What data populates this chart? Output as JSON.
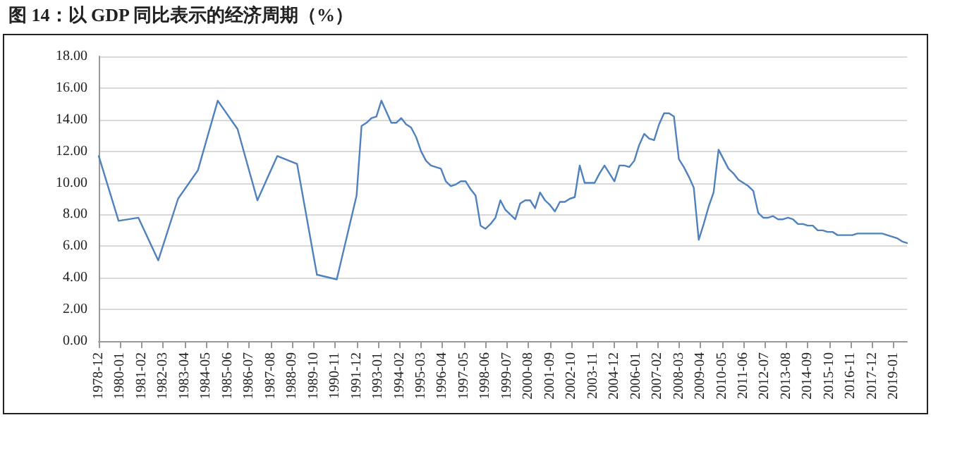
{
  "chart_data": {
    "type": "line",
    "title": "图 14：以 GDP 同比表示的经济周期（%）",
    "x": [
      "1978-12",
      "1979-12",
      "1980-12",
      "1981-12",
      "1982-12",
      "1983-12",
      "1984-12",
      "1985-12",
      "1986-12",
      "1987-12",
      "1988-12",
      "1989-12",
      "1990-12",
      "1991-12",
      "1992-03",
      "1992-06",
      "1992-09",
      "1992-12",
      "1993-03",
      "1993-06",
      "1993-09",
      "1993-12",
      "1994-03",
      "1994-06",
      "1994-09",
      "1994-12",
      "1995-03",
      "1995-06",
      "1995-09",
      "1995-12",
      "1996-03",
      "1996-06",
      "1996-09",
      "1996-12",
      "1997-03",
      "1997-06",
      "1997-09",
      "1997-12",
      "1998-03",
      "1998-06",
      "1998-09",
      "1998-12",
      "1999-03",
      "1999-06",
      "1999-09",
      "1999-12",
      "2000-03",
      "2000-06",
      "2000-09",
      "2000-12",
      "2001-03",
      "2001-06",
      "2001-09",
      "2001-12",
      "2002-03",
      "2002-06",
      "2002-09",
      "2002-12",
      "2003-03",
      "2003-06",
      "2003-09",
      "2003-12",
      "2004-03",
      "2004-06",
      "2004-09",
      "2004-12",
      "2005-03",
      "2005-06",
      "2005-09",
      "2005-12",
      "2006-03",
      "2006-06",
      "2006-09",
      "2006-12",
      "2007-03",
      "2007-06",
      "2007-09",
      "2007-12",
      "2008-03",
      "2008-06",
      "2008-09",
      "2008-12",
      "2009-03",
      "2009-06",
      "2009-09",
      "2009-12",
      "2010-03",
      "2010-06",
      "2010-09",
      "2010-12",
      "2011-03",
      "2011-06",
      "2011-09",
      "2011-12",
      "2012-03",
      "2012-06",
      "2012-09",
      "2012-12",
      "2013-03",
      "2013-06",
      "2013-09",
      "2013-12",
      "2014-03",
      "2014-06",
      "2014-09",
      "2014-12",
      "2015-03",
      "2015-06",
      "2015-09",
      "2015-12",
      "2016-03",
      "2016-06",
      "2016-09",
      "2016-12",
      "2017-03",
      "2017-06",
      "2017-09",
      "2017-12",
      "2018-03",
      "2018-06",
      "2018-09",
      "2018-12",
      "2019-03",
      "2019-06",
      "2019-09"
    ],
    "series": [
      {
        "color": "#4f81bd",
        "values": [
          11.7,
          7.6,
          7.8,
          5.1,
          9.0,
          10.8,
          15.2,
          13.4,
          8.9,
          11.7,
          11.2,
          4.2,
          3.9,
          9.2,
          13.6,
          13.8,
          14.1,
          14.2,
          15.2,
          14.5,
          13.8,
          13.8,
          14.1,
          13.7,
          13.5,
          12.9,
          12.0,
          11.4,
          11.1,
          11.0,
          10.9,
          10.1,
          9.8,
          9.9,
          10.1,
          10.1,
          9.6,
          9.2,
          7.3,
          7.1,
          7.4,
          7.8,
          8.9,
          8.3,
          8.0,
          7.7,
          8.7,
          8.9,
          8.9,
          8.4,
          9.4,
          8.9,
          8.6,
          8.2,
          8.8,
          8.8,
          9.0,
          9.1,
          11.1,
          10.0,
          10.0,
          10.0,
          10.6,
          11.1,
          10.6,
          10.1,
          11.1,
          11.1,
          11.0,
          11.4,
          12.4,
          13.1,
          12.8,
          12.7,
          13.7,
          14.4,
          14.4,
          14.2,
          11.5,
          11.0,
          10.4,
          9.7,
          6.4,
          7.4,
          8.5,
          9.4,
          12.1,
          11.5,
          10.9,
          10.6,
          10.2,
          10.0,
          9.8,
          9.5,
          8.1,
          7.8,
          7.8,
          7.9,
          7.7,
          7.7,
          7.8,
          7.7,
          7.4,
          7.4,
          7.3,
          7.3,
          7.0,
          7.0,
          6.9,
          6.9,
          6.7,
          6.7,
          6.7,
          6.7,
          6.8,
          6.8,
          6.8,
          6.8,
          6.8,
          6.8,
          6.7,
          6.6,
          6.5,
          6.3,
          6.2
        ]
      }
    ],
    "xlim": [
      "1978-12",
      "2019-09"
    ],
    "xticks": [
      "1978-12",
      "1980-01",
      "1981-02",
      "1982-03",
      "1983-04",
      "1984-05",
      "1985-06",
      "1986-07",
      "1987-08",
      "1988-09",
      "1989-10",
      "1990-11",
      "1991-12",
      "1993-01",
      "1994-02",
      "1995-03",
      "1996-04",
      "1997-05",
      "1998-06",
      "1999-07",
      "2000-08",
      "2001-09",
      "2002-10",
      "2003-11",
      "2004-12",
      "2006-01",
      "2007-02",
      "2008-03",
      "2009-04",
      "2010-05",
      "2011-06",
      "2012-07",
      "2013-08",
      "2014-09",
      "2015-10",
      "2016-11",
      "2017-12",
      "2019-01"
    ],
    "ylim": [
      0,
      18
    ],
    "yticks": [
      {
        "value": 0,
        "label": "0.00"
      },
      {
        "value": 2,
        "label": "2.00"
      },
      {
        "value": 4,
        "label": "4.00"
      },
      {
        "value": 6,
        "label": "6.00"
      },
      {
        "value": 8,
        "label": "8.00"
      },
      {
        "value": 10,
        "label": "10.00"
      },
      {
        "value": 12,
        "label": "12.00"
      },
      {
        "value": 14,
        "label": "14.00"
      },
      {
        "value": 16,
        "label": "16.00"
      },
      {
        "value": 18,
        "label": "18.00"
      }
    ],
    "grid": "y",
    "marker": "none",
    "line_style": "solid"
  }
}
